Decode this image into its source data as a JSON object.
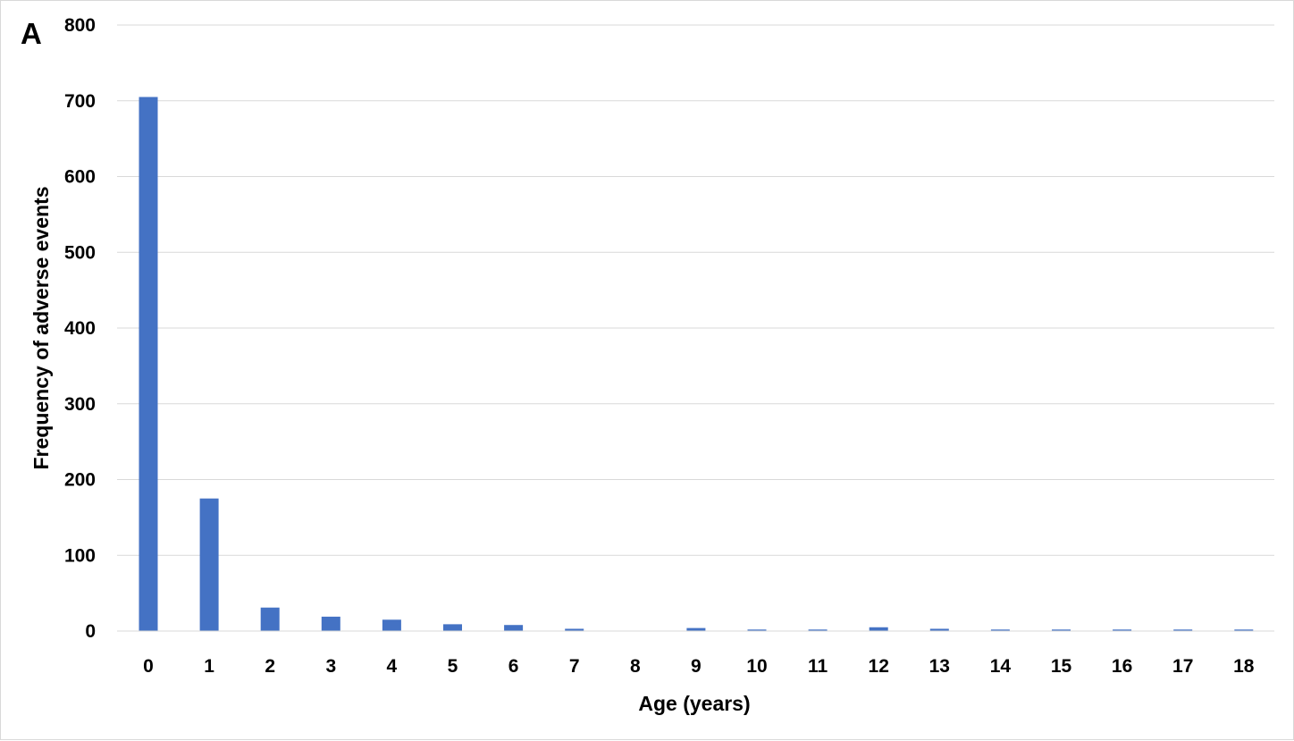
{
  "chart_data": {
    "type": "bar",
    "panel_label": "A",
    "title": "",
    "xlabel": "Age (years)",
    "ylabel": "Frequency of adverse events",
    "categories": [
      "0",
      "1",
      "2",
      "3",
      "4",
      "5",
      "6",
      "7",
      "8",
      "9",
      "10",
      "11",
      "12",
      "13",
      "14",
      "15",
      "16",
      "17",
      "18"
    ],
    "values": [
      705,
      175,
      31,
      19,
      15,
      9,
      8,
      3,
      0,
      4,
      2,
      2,
      5,
      3,
      2,
      2,
      2,
      2,
      2
    ],
    "ylim": [
      0,
      800
    ],
    "yticks": [
      "0",
      "100",
      "200",
      "300",
      "400",
      "500",
      "600",
      "700",
      "800"
    ],
    "grid": true,
    "legend": "none",
    "bar_color": "#4472c4",
    "grid_color": "#d9d9d9"
  }
}
